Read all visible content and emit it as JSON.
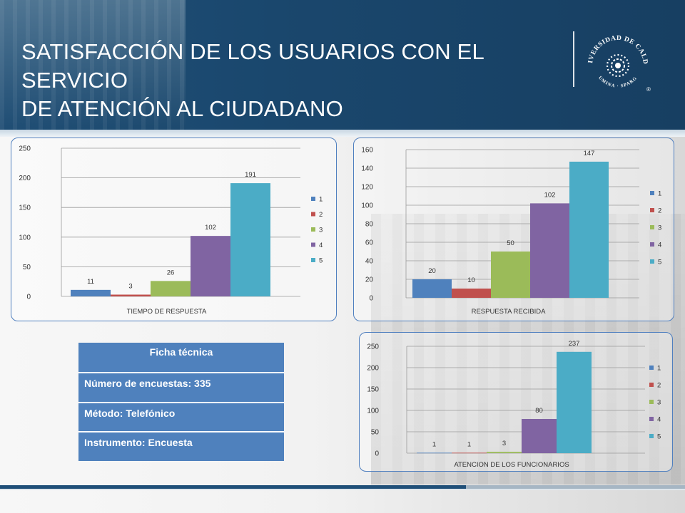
{
  "title_line1": "SATISFACCIÓN DE LOS USUARIOS CON EL SERVICIO",
  "title_line2": "DE ATENCIÓN AL CIUDADANO",
  "logo": {
    "arc_top": "UNIVERSIDAD DE CALDAS",
    "arc_bottom": "LUMINA · SPARGO",
    "registered": "®"
  },
  "colors": {
    "c1": "#4f81bd",
    "c2": "#c0504d",
    "c3": "#9bbb59",
    "c4": "#8064a2",
    "c5": "#4bacc6",
    "header": "#1f4f78",
    "border": "#4f7fbf"
  },
  "ficha": {
    "heading": "Ficha técnica",
    "row1": "Número de encuestas: 335",
    "row2": "Método: Telefónico",
    "row3": "Instrumento: Encuesta"
  },
  "chart_data": [
    {
      "id": "tiempo",
      "type": "bar",
      "xlabel": "TIEMPO DE RESPUESTA",
      "categories": [
        "TIEMPO DE RESPUESTA"
      ],
      "series": [
        {
          "name": "1",
          "values": [
            11
          ]
        },
        {
          "name": "2",
          "values": [
            3
          ]
        },
        {
          "name": "3",
          "values": [
            26
          ]
        },
        {
          "name": "4",
          "values": [
            102
          ]
        },
        {
          "name": "5",
          "values": [
            191
          ]
        }
      ],
      "ylim": [
        0,
        250
      ],
      "yticks": [
        0,
        50,
        100,
        150,
        200,
        250
      ],
      "legend": "right",
      "grid": true
    },
    {
      "id": "respuesta",
      "type": "bar",
      "xlabel": "RESPUESTA RECIBIDA",
      "categories": [
        "RESPUESTA RECIBIDA"
      ],
      "series": [
        {
          "name": "1",
          "values": [
            20
          ]
        },
        {
          "name": "2",
          "values": [
            10
          ]
        },
        {
          "name": "3",
          "values": [
            50
          ]
        },
        {
          "name": "4",
          "values": [
            102
          ]
        },
        {
          "name": "5",
          "values": [
            147
          ]
        }
      ],
      "ylim": [
        0,
        160
      ],
      "yticks": [
        0,
        20,
        40,
        60,
        80,
        100,
        120,
        140,
        160
      ],
      "legend": "right",
      "grid": true
    },
    {
      "id": "atencion",
      "type": "bar",
      "xlabel": "ATENCION DE LOS FUNCIONARIOS",
      "categories": [
        "ATENCION DE LOS FUNCIONARIOS"
      ],
      "series": [
        {
          "name": "1",
          "values": [
            1
          ]
        },
        {
          "name": "2",
          "values": [
            1
          ]
        },
        {
          "name": "3",
          "values": [
            3
          ]
        },
        {
          "name": "4",
          "values": [
            80
          ]
        },
        {
          "name": "5",
          "values": [
            237
          ]
        }
      ],
      "ylim": [
        0,
        250
      ],
      "yticks": [
        0,
        50,
        100,
        150,
        200,
        250
      ],
      "legend": "right",
      "grid": true
    }
  ]
}
